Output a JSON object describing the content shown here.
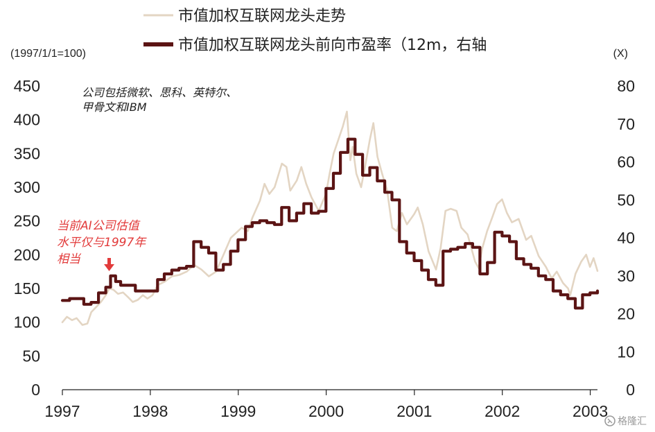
{
  "colors": {
    "price_series": "#e3d5c3",
    "pe_series": "#5b1414",
    "annotation": "#e23b3b",
    "axis": "#222222",
    "watermark": "#9a9a9a"
  },
  "watermark": {
    "text": "格隆汇",
    "icon": "gelonghui-logo-icon"
  },
  "annotation": {
    "lines": [
      "当前AI公司估值",
      "水平仅与1997年",
      "相当"
    ],
    "icon": "red-down-arrow-icon"
  },
  "chart_data": {
    "type": "line",
    "title": "",
    "legend": {
      "position": "top"
    },
    "grid": false,
    "note": [
      "公司包括微软、思科、英特尔、",
      "甲骨文和IBM"
    ],
    "x": {
      "type": "date",
      "range": [
        "1997-01-01",
        "2003-01-31"
      ],
      "tick_labels": [
        "1997",
        "1998",
        "1999",
        "2000",
        "2001",
        "2002",
        "2003"
      ]
    },
    "y_left": {
      "unit_label": "(1997/1/1=100)",
      "range": [
        0,
        450
      ],
      "tick_labels": [
        "0",
        "50",
        "100",
        "150",
        "200",
        "250",
        "300",
        "350",
        "400",
        "450"
      ]
    },
    "y_right": {
      "unit_label": "(X)",
      "range": [
        0,
        80
      ],
      "tick_labels": [
        "0",
        "10",
        "20",
        "30",
        "40",
        "50",
        "60",
        "70",
        "80"
      ]
    },
    "series": [
      {
        "name": "市值加权互联网龙头走势",
        "axis": "left",
        "style": "thin",
        "points": [
          [
            "1997-01-01",
            100
          ],
          [
            "1997-01-20",
            108
          ],
          [
            "1997-02-10",
            103
          ],
          [
            "1997-03-01",
            106
          ],
          [
            "1997-03-25",
            96
          ],
          [
            "1997-04-15",
            98
          ],
          [
            "1997-05-01",
            115
          ],
          [
            "1997-05-20",
            122
          ],
          [
            "1997-06-10",
            130
          ],
          [
            "1997-06-30",
            140
          ],
          [
            "1997-07-15",
            150
          ],
          [
            "1997-08-01",
            148
          ],
          [
            "1997-08-20",
            142
          ],
          [
            "1997-09-10",
            144
          ],
          [
            "1997-10-01",
            137
          ],
          [
            "1997-10-20",
            130
          ],
          [
            "1997-11-10",
            133
          ],
          [
            "1997-12-01",
            140
          ],
          [
            "1997-12-20",
            135
          ],
          [
            "1998-01-10",
            140
          ],
          [
            "1998-02-01",
            155
          ],
          [
            "1998-03-01",
            160
          ],
          [
            "1998-04-01",
            168
          ],
          [
            "1998-05-01",
            170
          ],
          [
            "1998-06-01",
            175
          ],
          [
            "1998-07-01",
            185
          ],
          [
            "1998-08-01",
            178
          ],
          [
            "1998-09-01",
            168
          ],
          [
            "1998-10-01",
            175
          ],
          [
            "1998-11-01",
            200
          ],
          [
            "1998-12-01",
            225
          ],
          [
            "1999-01-15",
            240
          ],
          [
            "1999-02-10",
            235
          ],
          [
            "1999-03-01",
            255
          ],
          [
            "1999-04-01",
            280
          ],
          [
            "1999-04-20",
            305
          ],
          [
            "1999-05-10",
            290
          ],
          [
            "1999-06-01",
            300
          ],
          [
            "1999-07-01",
            335
          ],
          [
            "1999-07-20",
            330
          ],
          [
            "1999-08-05",
            295
          ],
          [
            "1999-09-01",
            310
          ],
          [
            "1999-09-20",
            330
          ],
          [
            "1999-10-10",
            305
          ],
          [
            "1999-11-01",
            285
          ],
          [
            "1999-12-01",
            265
          ],
          [
            "1999-12-31",
            290
          ],
          [
            "2000-01-15",
            320
          ],
          [
            "2000-02-01",
            350
          ],
          [
            "2000-02-20",
            370
          ],
          [
            "2000-03-10",
            390
          ],
          [
            "2000-03-27",
            412
          ],
          [
            "2000-04-10",
            340
          ],
          [
            "2000-04-20",
            360
          ],
          [
            "2000-05-05",
            320
          ],
          [
            "2000-05-25",
            300
          ],
          [
            "2000-06-10",
            330
          ],
          [
            "2000-06-30",
            370
          ],
          [
            "2000-07-15",
            395
          ],
          [
            "2000-08-01",
            345
          ],
          [
            "2000-08-20",
            320
          ],
          [
            "2000-09-10",
            295
          ],
          [
            "2000-10-01",
            240
          ],
          [
            "2000-10-20",
            235
          ],
          [
            "2000-11-10",
            262
          ],
          [
            "2000-12-01",
            245
          ],
          [
            "2000-12-31",
            260
          ],
          [
            "2001-01-15",
            270
          ],
          [
            "2001-02-05",
            245
          ],
          [
            "2001-03-01",
            205
          ],
          [
            "2001-04-01",
            178
          ],
          [
            "2001-04-20",
            210
          ],
          [
            "2001-05-10",
            265
          ],
          [
            "2001-06-01",
            268
          ],
          [
            "2001-06-25",
            265
          ],
          [
            "2001-07-15",
            240
          ],
          [
            "2001-08-10",
            230
          ],
          [
            "2001-09-10",
            190
          ],
          [
            "2001-09-25",
            180
          ],
          [
            "2001-10-10",
            210
          ],
          [
            "2001-10-30",
            235
          ],
          [
            "2001-11-20",
            255
          ],
          [
            "2001-12-10",
            275
          ],
          [
            "2001-12-31",
            282
          ],
          [
            "2002-01-20",
            262
          ],
          [
            "2002-02-10",
            248
          ],
          [
            "2002-03-10",
            253
          ],
          [
            "2002-04-10",
            222
          ],
          [
            "2002-05-01",
            228
          ],
          [
            "2002-06-01",
            198
          ],
          [
            "2002-07-01",
            182
          ],
          [
            "2002-07-25",
            165
          ],
          [
            "2002-08-15",
            175
          ],
          [
            "2002-09-10",
            158
          ],
          [
            "2002-10-01",
            150
          ],
          [
            "2002-10-10",
            140
          ],
          [
            "2002-11-01",
            172
          ],
          [
            "2002-11-25",
            190
          ],
          [
            "2002-12-15",
            200
          ],
          [
            "2002-12-31",
            182
          ],
          [
            "2003-01-15",
            195
          ],
          [
            "2003-01-31",
            176
          ]
        ]
      },
      {
        "name": "市值加权互联网龙头前向市盈率（12m，右轴",
        "axis": "right",
        "style": "thick-step",
        "points": [
          [
            "1997-01-01",
            23.5
          ],
          [
            "1997-01-31",
            24.0
          ],
          [
            "1997-03-01",
            24.0
          ],
          [
            "1997-03-31",
            22.5
          ],
          [
            "1997-04-30",
            23.0
          ],
          [
            "1997-05-31",
            25.5
          ],
          [
            "1997-06-30",
            27.0
          ],
          [
            "1997-07-20",
            30.0
          ],
          [
            "1997-08-10",
            28.5
          ],
          [
            "1997-08-31",
            27.5
          ],
          [
            "1997-09-30",
            27.5
          ],
          [
            "1997-10-31",
            26.0
          ],
          [
            "1997-11-30",
            26.0
          ],
          [
            "1997-12-31",
            26.0
          ],
          [
            "1998-01-31",
            29.0
          ],
          [
            "1998-02-28",
            30.5
          ],
          [
            "1998-03-31",
            31.5
          ],
          [
            "1998-04-30",
            32.0
          ],
          [
            "1998-05-31",
            32.5
          ],
          [
            "1998-06-30",
            39.0
          ],
          [
            "1998-07-31",
            37.5
          ],
          [
            "1998-08-31",
            36.0
          ],
          [
            "1998-09-30",
            31.5
          ],
          [
            "1998-10-31",
            33.0
          ],
          [
            "1998-11-30",
            36.5
          ],
          [
            "1998-12-31",
            39.5
          ],
          [
            "1999-01-31",
            43.0
          ],
          [
            "1999-02-28",
            44.0
          ],
          [
            "1999-03-31",
            44.5
          ],
          [
            "1999-04-30",
            44.0
          ],
          [
            "1999-05-31",
            43.5
          ],
          [
            "1999-06-30",
            48.0
          ],
          [
            "1999-07-31",
            44.5
          ],
          [
            "1999-08-31",
            46.5
          ],
          [
            "1999-09-30",
            49.0
          ],
          [
            "1999-10-31",
            46.5
          ],
          [
            "1999-11-30",
            47.0
          ],
          [
            "1999-12-31",
            53.0
          ],
          [
            "2000-01-31",
            57.0
          ],
          [
            "2000-02-29",
            62.5
          ],
          [
            "2000-03-31",
            66.0
          ],
          [
            "2000-04-30",
            62.0
          ],
          [
            "2000-05-31",
            56.5
          ],
          [
            "2000-06-30",
            58.5
          ],
          [
            "2000-07-31",
            55.0
          ],
          [
            "2000-08-31",
            52.0
          ],
          [
            "2000-09-30",
            50.0
          ],
          [
            "2000-10-31",
            39.0
          ],
          [
            "2000-11-30",
            36.0
          ],
          [
            "2000-12-31",
            34.0
          ],
          [
            "2001-01-31",
            31.5
          ],
          [
            "2001-02-28",
            29.0
          ],
          [
            "2001-03-31",
            27.5
          ],
          [
            "2001-04-30",
            36.5
          ],
          [
            "2001-05-31",
            37.0
          ],
          [
            "2001-06-30",
            37.5
          ],
          [
            "2001-07-31",
            38.5
          ],
          [
            "2001-08-31",
            37.5
          ],
          [
            "2001-09-30",
            30.5
          ],
          [
            "2001-10-31",
            33.5
          ],
          [
            "2001-11-30",
            41.5
          ],
          [
            "2001-12-31",
            40.5
          ],
          [
            "2002-01-31",
            39.0
          ],
          [
            "2002-02-28",
            34.5
          ],
          [
            "2002-03-31",
            33.0
          ],
          [
            "2002-04-30",
            32.0
          ],
          [
            "2002-05-31",
            30.0
          ],
          [
            "2002-06-30",
            29.0
          ],
          [
            "2002-07-31",
            26.0
          ],
          [
            "2002-08-31",
            25.0
          ],
          [
            "2002-09-30",
            24.0
          ],
          [
            "2002-10-31",
            21.5
          ],
          [
            "2002-11-30",
            25.0
          ],
          [
            "2002-12-31",
            25.5
          ],
          [
            "2003-01-31",
            26.0
          ]
        ]
      }
    ]
  }
}
